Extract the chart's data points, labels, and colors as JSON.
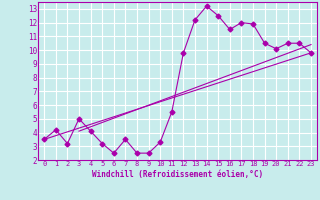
{
  "xlabel": "Windchill (Refroidissement éolien,°C)",
  "bg_color": "#c8ecec",
  "line_color": "#aa00aa",
  "grid_color": "#ffffff",
  "xlim": [
    -0.5,
    23.5
  ],
  "ylim": [
    2,
    13.5
  ],
  "xticks": [
    0,
    1,
    2,
    3,
    4,
    5,
    6,
    7,
    8,
    9,
    10,
    11,
    12,
    13,
    14,
    15,
    16,
    17,
    18,
    19,
    20,
    21,
    22,
    23
  ],
  "yticks": [
    2,
    3,
    4,
    5,
    6,
    7,
    8,
    9,
    10,
    11,
    12,
    13
  ],
  "line1_x": [
    0,
    1,
    2,
    3,
    4,
    5,
    6,
    7,
    8,
    9,
    10,
    11,
    12,
    13,
    14,
    15,
    16,
    17,
    18,
    19,
    20,
    21,
    22,
    23
  ],
  "line1_y": [
    3.5,
    4.2,
    3.2,
    5.0,
    4.1,
    3.2,
    2.5,
    3.5,
    2.5,
    2.5,
    3.3,
    5.5,
    9.8,
    12.2,
    13.2,
    12.5,
    11.5,
    12.0,
    11.9,
    10.5,
    10.1,
    10.5,
    10.5,
    9.8
  ],
  "trend1_x": [
    0,
    23
  ],
  "trend1_y": [
    3.5,
    9.8
  ],
  "trend2_x": [
    3,
    23
  ],
  "trend2_y": [
    4.1,
    10.4
  ]
}
